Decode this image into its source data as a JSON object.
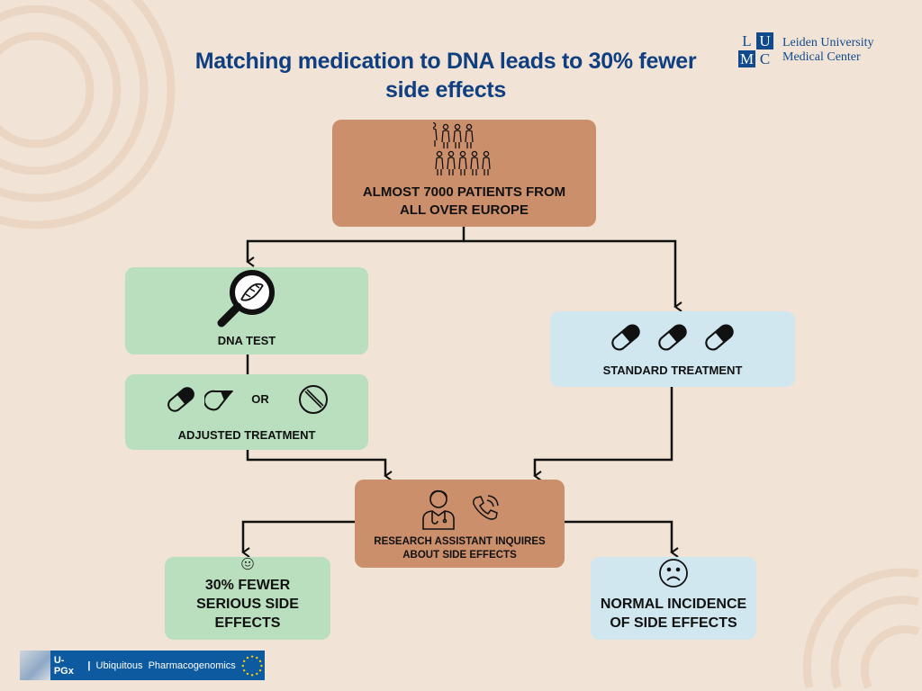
{
  "title": "Matching medication to DNA leads to 30% fewer side effects",
  "logo": {
    "mark": [
      "L",
      "U",
      "M",
      "C"
    ],
    "line1": "Leiden University",
    "line2": "Medical Center"
  },
  "boxes": {
    "patients": "ALMOST 7000 PATIENTS FROM ALL OVER EUROPE",
    "dna_test": "DNA TEST",
    "adjusted": "ADJUSTED TREATMENT",
    "or": "OR",
    "standard": "STANDARD TREATMENT",
    "assistant": "RESEARCH ASSISTANT INQUIRES ABOUT SIDE EFFECTS",
    "fewer": "30% FEWER SERIOUS SIDE EFFECTS",
    "normal": "NORMAL INCIDENCE OF SIDE EFFECTS"
  },
  "footer": {
    "brand": "U-PGx",
    "sep": "|",
    "name": "Ubiquitous  Pharmacogenomics"
  },
  "colors": {
    "title": "#0f3f80",
    "brown": "#cc8f6c",
    "green": "#b9dfbf",
    "blue": "#d0e7f0",
    "background": "#f1e4d6"
  }
}
